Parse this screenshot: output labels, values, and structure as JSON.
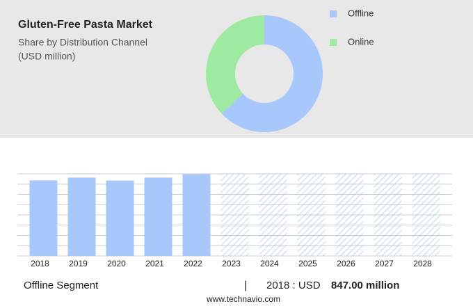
{
  "chart_data": [
    {
      "type": "donut",
      "title": "Gluten-Free Pasta Market",
      "subtitle": "Share by Distribution Channel",
      "unit_note": "(USD million)",
      "categories": [
        "Offline",
        "Online"
      ],
      "values": [
        63,
        37
      ],
      "colors": [
        "#a8c8fb",
        "#9eeaa0"
      ]
    },
    {
      "type": "bar",
      "categories": [
        "2018",
        "2019",
        "2020",
        "2021",
        "2022",
        "2023",
        "2024",
        "2025",
        "2026",
        "2027",
        "2028"
      ],
      "values": [
        847,
        878,
        845,
        878,
        917,
        null,
        null,
        null,
        null,
        null,
        null
      ],
      "color": "#a8c8fb",
      "ylim": [
        0,
        920
      ],
      "yticks": [
        0,
        115,
        230,
        345,
        460,
        575,
        690,
        805,
        920
      ],
      "grid": true
    }
  ],
  "footer": {
    "segment": "Offline Segment",
    "separator": "|",
    "year": "2018 : USD",
    "value": "847.00 million",
    "source": "www.technavio.com"
  }
}
